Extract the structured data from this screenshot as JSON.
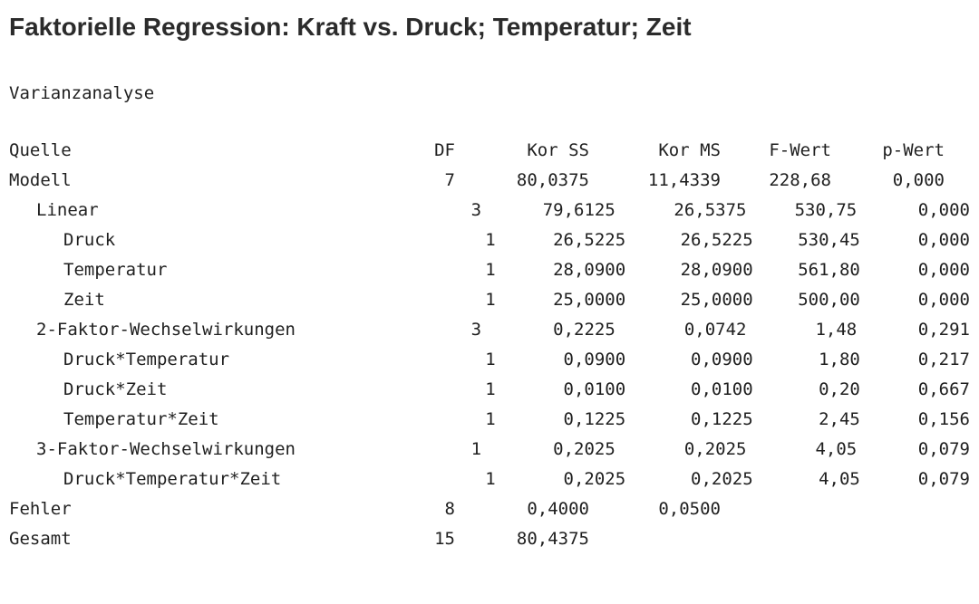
{
  "title": "Faktorielle Regression: Kraft vs. Druck; Temperatur; Zeit",
  "section_heading": "Varianzanalyse",
  "anova_table": {
    "columns": [
      "Quelle",
      "DF",
      "Kor SS",
      "Kor MS",
      "F-Wert",
      "p-Wert"
    ],
    "rows": [
      {
        "quelle": "Modell",
        "indent": 0,
        "df": "7",
        "kor_ss": "80,0375",
        "kor_ms": "11,4339",
        "f_wert": "228,68",
        "p_wert": "0,000"
      },
      {
        "quelle": "Linear",
        "indent": 1,
        "df": "3",
        "kor_ss": "79,6125",
        "kor_ms": "26,5375",
        "f_wert": "530,75",
        "p_wert": "0,000"
      },
      {
        "quelle": "Druck",
        "indent": 2,
        "df": "1",
        "kor_ss": "26,5225",
        "kor_ms": "26,5225",
        "f_wert": "530,45",
        "p_wert": "0,000"
      },
      {
        "quelle": "Temperatur",
        "indent": 2,
        "df": "1",
        "kor_ss": "28,0900",
        "kor_ms": "28,0900",
        "f_wert": "561,80",
        "p_wert": "0,000"
      },
      {
        "quelle": "Zeit",
        "indent": 2,
        "df": "1",
        "kor_ss": "25,0000",
        "kor_ms": "25,0000",
        "f_wert": "500,00",
        "p_wert": "0,000"
      },
      {
        "quelle": "2-Faktor-Wechselwirkungen",
        "indent": 1,
        "df": "3",
        "kor_ss": "0,2225",
        "kor_ms": "0,0742",
        "f_wert": "1,48",
        "p_wert": "0,291"
      },
      {
        "quelle": "Druck*Temperatur",
        "indent": 2,
        "df": "1",
        "kor_ss": "0,0900",
        "kor_ms": "0,0900",
        "f_wert": "1,80",
        "p_wert": "0,217"
      },
      {
        "quelle": "Druck*Zeit",
        "indent": 2,
        "df": "1",
        "kor_ss": "0,0100",
        "kor_ms": "0,0100",
        "f_wert": "0,20",
        "p_wert": "0,667"
      },
      {
        "quelle": "Temperatur*Zeit",
        "indent": 2,
        "df": "1",
        "kor_ss": "0,1225",
        "kor_ms": "0,1225",
        "f_wert": "2,45",
        "p_wert": "0,156"
      },
      {
        "quelle": "3-Faktor-Wechselwirkungen",
        "indent": 1,
        "df": "1",
        "kor_ss": "0,2025",
        "kor_ms": "0,2025",
        "f_wert": "4,05",
        "p_wert": "0,079"
      },
      {
        "quelle": "Druck*Temperatur*Zeit",
        "indent": 2,
        "df": "1",
        "kor_ss": "0,2025",
        "kor_ms": "0,2025",
        "f_wert": "4,05",
        "p_wert": "0,079"
      },
      {
        "quelle": "Fehler",
        "indent": 0,
        "df": "8",
        "kor_ss": "0,4000",
        "kor_ms": "0,0500",
        "f_wert": "",
        "p_wert": ""
      },
      {
        "quelle": "Gesamt",
        "indent": 0,
        "df": "15",
        "kor_ss": "80,4375",
        "kor_ms": "",
        "f_wert": "",
        "p_wert": ""
      }
    ]
  }
}
